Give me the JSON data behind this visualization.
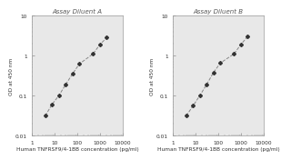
{
  "panel_A": {
    "title": "Assay Diluent A",
    "x_data": [
      3.9,
      7.8,
      15.6,
      31.25,
      62.5,
      125,
      500,
      1000,
      2000
    ],
    "y_data": [
      0.031,
      0.06,
      0.1,
      0.19,
      0.35,
      0.62,
      1.1,
      1.9,
      2.8
    ],
    "xlim": [
      1,
      10000
    ],
    "ylim": [
      0.01,
      10
    ],
    "xticks": [
      1,
      10,
      100,
      1000,
      10000
    ],
    "xtick_labels": [
      "1",
      "10",
      "100",
      "1000",
      "10000"
    ],
    "yticks": [
      0.01,
      0.1,
      1,
      10
    ],
    "ytick_labels": [
      "0.01",
      "0.1",
      "1",
      "10"
    ],
    "xlabel": "Human TNFRSF9/4-1BB concentration (pg/ml)",
    "ylabel": "OD at 450 nm"
  },
  "panel_B": {
    "title": "Assay Diluent B",
    "x_data": [
      3.9,
      7.8,
      15.6,
      31.25,
      62.5,
      125,
      500,
      1000,
      2000
    ],
    "y_data": [
      0.031,
      0.055,
      0.1,
      0.19,
      0.38,
      0.65,
      1.1,
      1.9,
      3.0
    ],
    "xlim": [
      1,
      10000
    ],
    "ylim": [
      0.01,
      10
    ],
    "xticks": [
      1,
      10,
      100,
      1000,
      10000
    ],
    "xtick_labels": [
      "1",
      "10",
      "100",
      "1000",
      "10000"
    ],
    "yticks": [
      0.01,
      0.1,
      1,
      10
    ],
    "ytick_labels": [
      "0.01",
      "0.1",
      "1",
      "10"
    ],
    "xlabel": "Human TNFRSF9/4-1BB concentration (pg/ml)",
    "ylabel": "OD at 450 nm"
  },
  "line_color": "#888888",
  "marker_color": "#333333",
  "plot_bg_color": "#e8e8e8",
  "fig_bg_color": "#ffffff",
  "title_fontsize": 5.0,
  "label_fontsize": 4.2,
  "tick_fontsize": 4.2,
  "spine_color": "#999999"
}
